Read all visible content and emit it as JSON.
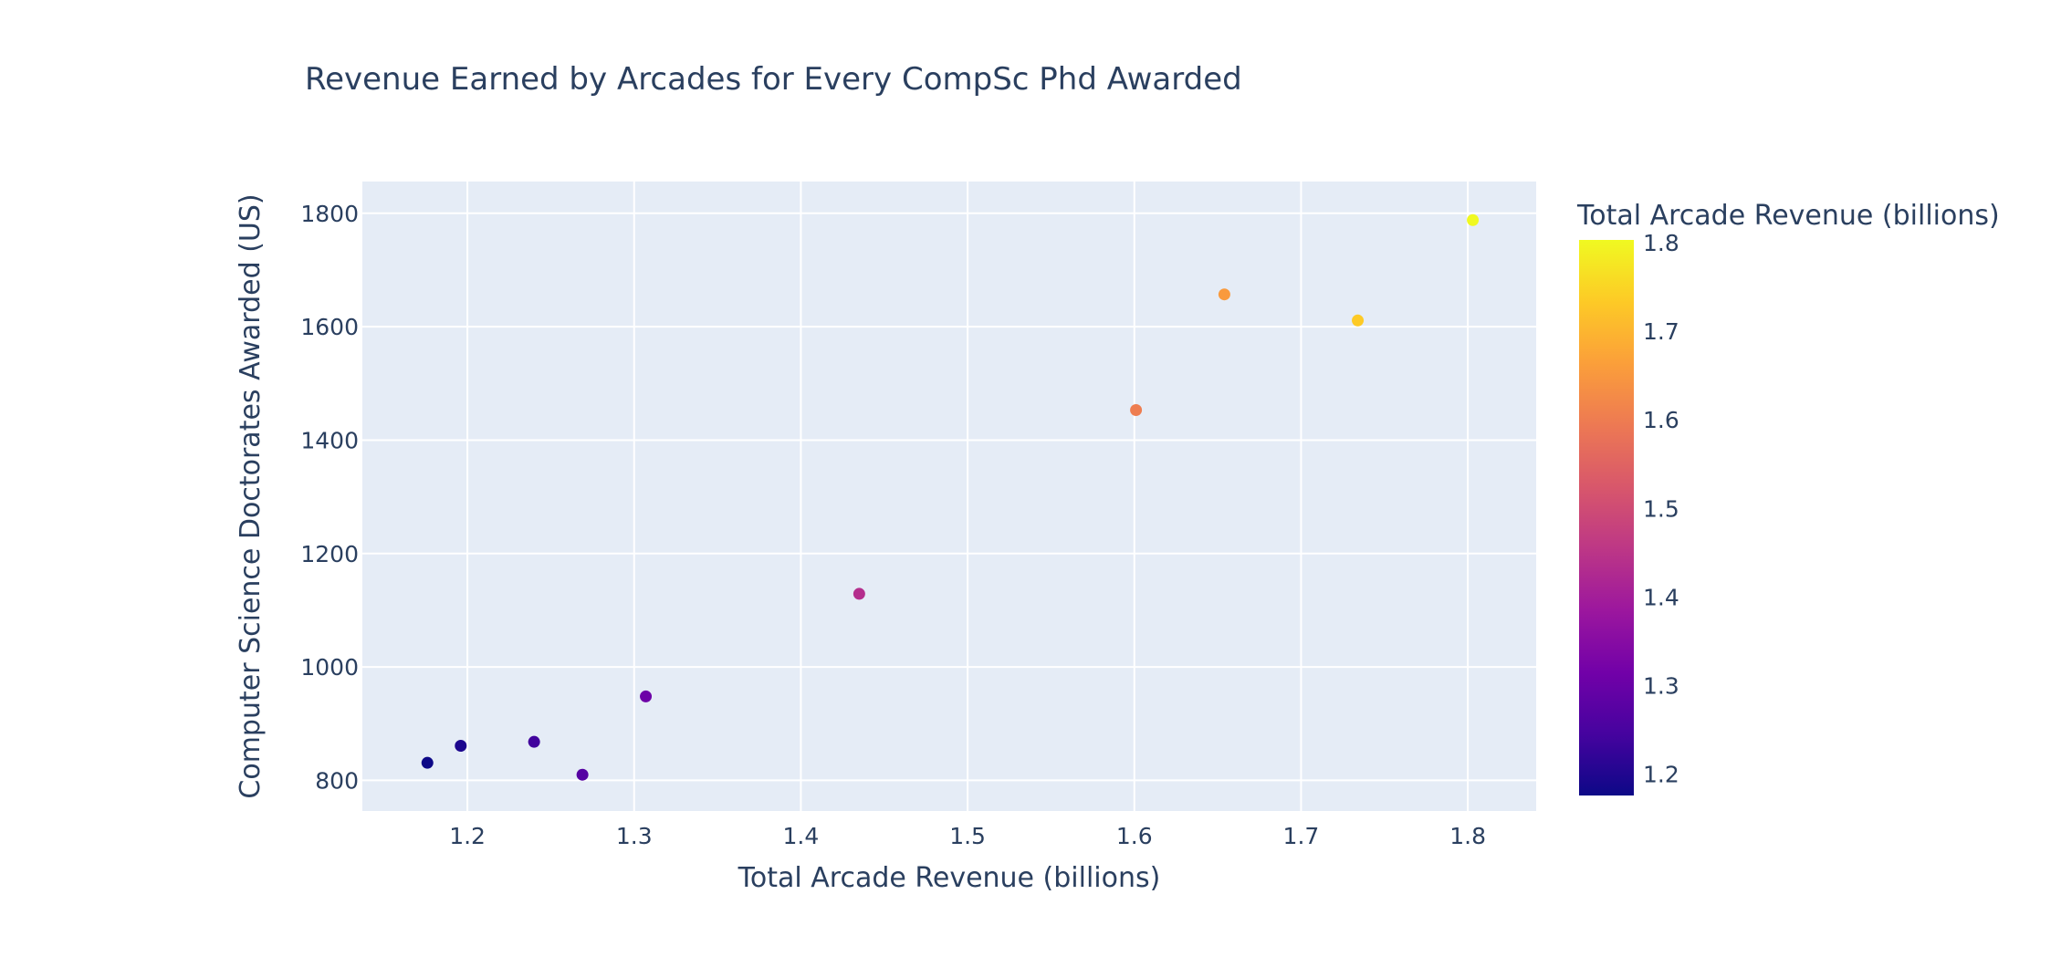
{
  "chart_data": {
    "type": "scatter",
    "title": "Revenue Earned by Arcades for Every CompSc Phd Awarded",
    "xlabel": "Total Arcade Revenue (billions)",
    "ylabel": "Computer Science Doctorates Awarded (US)",
    "xlim": [
      1.137,
      1.841
    ],
    "ylim": [
      746,
      1856
    ],
    "xticks": [
      1.2,
      1.3,
      1.4,
      1.5,
      1.6,
      1.7,
      1.8
    ],
    "yticks": [
      800,
      1000,
      1200,
      1400,
      1600,
      1800
    ],
    "grid": true,
    "points": [
      {
        "x": 1.176,
        "y": 831
      },
      {
        "x": 1.196,
        "y": 861
      },
      {
        "x": 1.24,
        "y": 868
      },
      {
        "x": 1.269,
        "y": 810
      },
      {
        "x": 1.307,
        "y": 948
      },
      {
        "x": 1.435,
        "y": 1129
      },
      {
        "x": 1.601,
        "y": 1453
      },
      {
        "x": 1.654,
        "y": 1657
      },
      {
        "x": 1.734,
        "y": 1611
      },
      {
        "x": 1.803,
        "y": 1788
      }
    ],
    "colorbar": {
      "title": "Total Arcade Revenue (billions)",
      "range": [
        1.176,
        1.803
      ],
      "ticks": [
        1.2,
        1.3,
        1.4,
        1.5,
        1.6,
        1.7,
        1.8
      ],
      "colorscale": [
        "#0d0887",
        "#46039f",
        "#7201a8",
        "#9c179e",
        "#bd3786",
        "#d8576b",
        "#ed7953",
        "#fb9f3a",
        "#fdca26",
        "#f0f921"
      ]
    },
    "colors": {
      "plot_bg": "#e5ecf6",
      "grid": "#ffffff",
      "text": "#2a3f5f"
    }
  }
}
